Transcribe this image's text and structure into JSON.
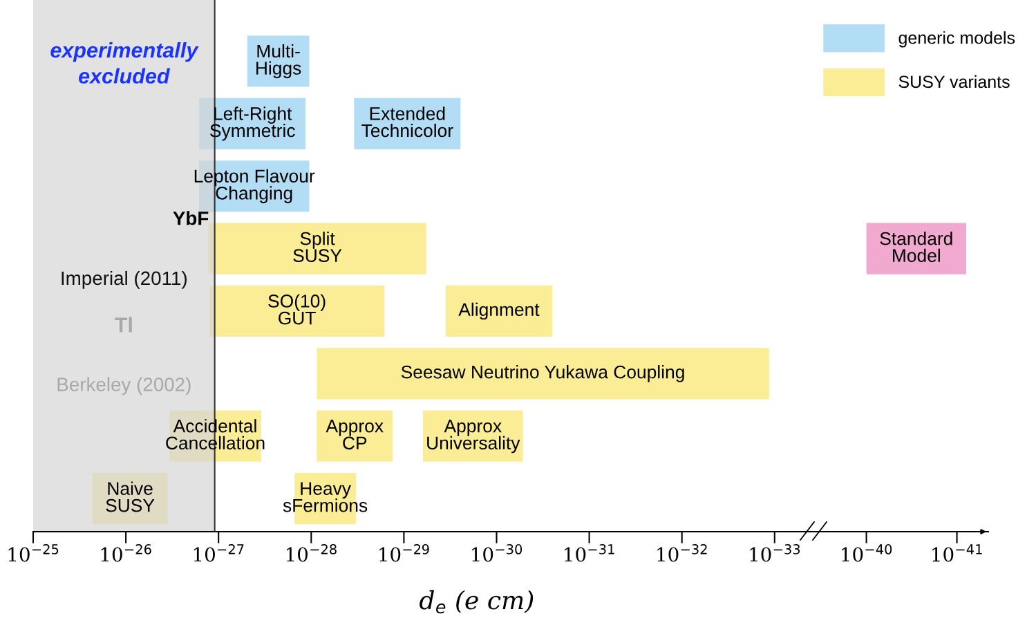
{
  "chart_data": [
    {
      "type": "bar",
      "orientation": "horizontal",
      "xlabel": "d$_{e}$ (e cm)",
      "categories": [
        null,
        null,
        null,
        null,
        null,
        null,
        null,
        null
      ],
      "series": [
        {
          "name": "generic models",
          "color": "#b3dcf5",
          "values": [
            3.85e-28,
            1.5e-27,
            1.52e-27,
            null,
            null,
            null,
            null,
            null
          ],
          "base": [
            1.05e-28,
            1.15e-28,
            1.05e-28,
            null,
            null,
            null,
            null,
            null
          ],
          "value_labels": [
            "Multi-\nHiggs",
            "Left-Right\nSymmetric",
            "Lepton Flavour\nChanging",
            null,
            null,
            null,
            null,
            null
          ]
        },
        {
          "color": "#b3dcf5",
          "values": [
            null,
            3.2e-29,
            null,
            null,
            null,
            null,
            null,
            null
          ],
          "base": [
            null,
            2.45e-30,
            null,
            null,
            null,
            null,
            null,
            null
          ],
          "value_labels": [
            null,
            "Extended\nTechnicolor",
            null,
            null,
            null,
            null,
            null,
            null
          ]
        },
        {
          "name": "SUSY variants",
          "color": "#fbec96",
          "values": [
            null,
            null,
            null,
            1.28e-27,
            1.24e-27,
            8.7e-29,
            3.04e-27,
            1.94e-26
          ],
          "base": [
            null,
            null,
            null,
            5.75e-30,
            1.62e-29,
            1.15e-33,
            3.47e-28,
            3.55e-27
          ],
          "value_labels": [
            null,
            null,
            null,
            "Split\nSUSY",
            "SO(10)\nGUT",
            "Seesaw Neutrino Yukawa Coupling",
            "Accidental\nCancellation",
            "Naive\nSUSY"
          ]
        },
        {
          "color": "#fbec96",
          "values": [
            null,
            null,
            null,
            null,
            3.3e-30,
            null,
            7.4e-29,
            1.18e-28
          ],
          "base": [
            null,
            null,
            null,
            null,
            2.5e-31,
            null,
            1.32e-29,
            3.3e-29
          ],
          "value_labels": [
            null,
            null,
            null,
            null,
            "Alignment",
            null,
            "Approx\nCP",
            "Heavy\nsFermions"
          ]
        },
        {
          "color": "#fbec96",
          "values": [
            null,
            null,
            null,
            null,
            null,
            null,
            5.7e-30,
            null
          ],
          "base": [
            null,
            null,
            null,
            null,
            null,
            null,
            5.2e-31,
            null
          ],
          "value_labels": [
            null,
            null,
            null,
            null,
            null,
            null,
            "Approx\nUniversality",
            null
          ]
        }
      ],
      "log": "x",
      "xlim": [
        1e-25,
        5.1e-34
      ],
      "xticks": [
        {
          "value": 1e-25,
          "label": "10$^{−25}$"
        },
        {
          "value": 1e-26,
          "label": "10$^{−26}$"
        },
        {
          "value": 1e-27,
          "label": "10$^{−27}$"
        },
        {
          "value": 1e-28,
          "label": "10$^{−28}$"
        },
        {
          "value": 1e-29,
          "label": "10$^{−29}$"
        },
        {
          "value": 1e-30,
          "label": "10$^{−30}$"
        },
        {
          "value": 1e-31,
          "label": "10$^{−31}$"
        },
        {
          "value": 1e-32,
          "label": "10$^{−32}$"
        },
        {
          "value": 1e-33,
          "label": "10$^{−33}$"
        }
      ],
      "bands": [
        {
          "axis": "x",
          "from": 1e-25,
          "to": 1.1e-27,
          "label": "experimentally\nexcluded",
          "color": "#d6d6d6"
        }
      ],
      "ref_lines": [
        {
          "axis": "x",
          "value": 1.1e-27,
          "label": "YbF",
          "color": "#333333",
          "line_style": "solid"
        }
      ],
      "annotations": [
        "Imperial (2011)",
        "Tl",
        "Berkeley (2002)"
      ],
      "tick_labels": "x",
      "grid": false,
      "legend": "top right"
    },
    {
      "type": "bar",
      "orientation": "horizontal",
      "categories": [
        null,
        null,
        null,
        null,
        null,
        null,
        null,
        null
      ],
      "series": [
        {
          "color": "#f2a9cf",
          "values": [
            null,
            null,
            null,
            9.2e-41,
            null,
            null,
            null,
            null
          ],
          "base": [
            null,
            null,
            null,
            7.9e-42,
            null,
            null,
            null,
            null
          ],
          "value_labels": [
            null,
            null,
            null,
            "Standard\nModel",
            null,
            null,
            null,
            null
          ]
        }
      ],
      "log": "x",
      "xlim": [
        2.8e-40,
        4.5e-42
      ],
      "xticks": [
        {
          "value": 1e-40,
          "label": "10$^{−40}$"
        },
        {
          "value": 1e-41,
          "label": "10$^{−41}$"
        }
      ],
      "tick_labels": "x",
      "grid": false
    }
  ]
}
